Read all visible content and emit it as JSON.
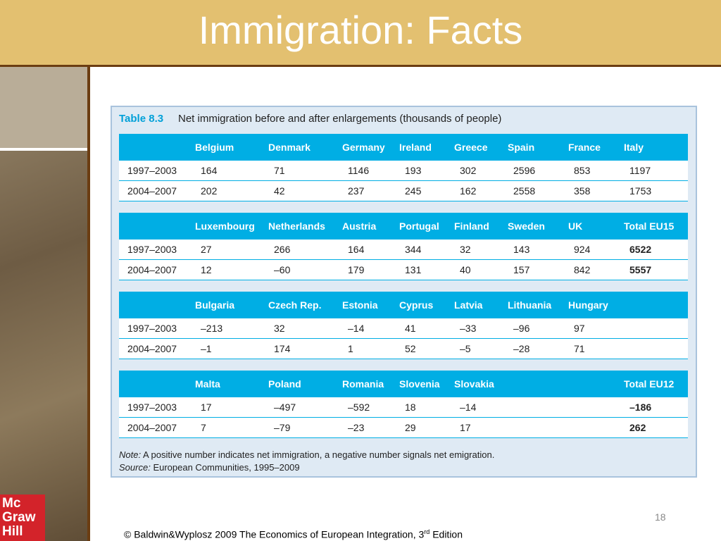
{
  "header": {
    "title": "Immigration: Facts"
  },
  "table": {
    "label": "Table 8.3",
    "caption": "Net immigration before and after enlargements (thousands of people)",
    "blocks": [
      {
        "columns": [
          "Belgium",
          "Denmark",
          "Germany",
          "Ireland",
          "Greece",
          "Spain",
          "France",
          "Italy"
        ],
        "rows": [
          {
            "period": "1997–2003",
            "cells": [
              "164",
              "71",
              "1146",
              "193",
              "302",
              "2596",
              "853",
              "1197"
            ]
          },
          {
            "period": "2004–2007",
            "cells": [
              "202",
              "42",
              "237",
              "245",
              "162",
              "2558",
              "358",
              "1753"
            ]
          }
        ]
      },
      {
        "columns": [
          "Luxembourg",
          "Netherlands",
          "Austria",
          "Portugal",
          "Finland",
          "Sweden",
          "UK",
          "Total EU15"
        ],
        "rows": [
          {
            "period": "1997–2003",
            "cells": [
              "27",
              "266",
              "164",
              "344",
              "32",
              "143",
              "924",
              "6522"
            ]
          },
          {
            "period": "2004–2007",
            "cells": [
              "12",
              "–60",
              "179",
              "131",
              "40",
              "157",
              "842",
              "5557"
            ]
          }
        ]
      },
      {
        "columns": [
          "Bulgaria",
          "Czech Rep.",
          "Estonia",
          "Cyprus",
          "Latvia",
          "Lithuania",
          "Hungary",
          null
        ],
        "rows": [
          {
            "period": "1997–2003",
            "cells": [
              "–213",
              "32",
              "–14",
              "41",
              "–33",
              "–96",
              "97",
              null
            ]
          },
          {
            "period": "2004–2007",
            "cells": [
              "–1",
              "174",
              "1",
              "52",
              "–5",
              "–28",
              "71",
              null
            ]
          }
        ]
      },
      {
        "columns": [
          "Malta",
          "Poland",
          "Romania",
          "Slovenia",
          "Slovakia",
          null,
          null,
          "Total EU12"
        ],
        "rows": [
          {
            "period": "1997–2003",
            "cells": [
              "17",
              "–497",
              "–592",
              "18",
              "–14",
              null,
              null,
              "–186"
            ]
          },
          {
            "period": "2004–2007",
            "cells": [
              "7",
              "–79",
              "–23",
              "29",
              "17",
              null,
              null,
              "262"
            ]
          }
        ]
      }
    ],
    "note_label": "Note:",
    "note": "A positive number indicates net immigration, a negative number signals net emigration.",
    "source_label": "Source:",
    "source": "European Communities, 1995–2009"
  },
  "page_number": "18",
  "footer": {
    "text": "© Baldwin&Wyplosz 2009 The Economics of European Integration, 3",
    "superscript": "rd",
    "suffix": " Edition"
  },
  "logo": {
    "lines": [
      "Mc",
      "Graw",
      "Hill"
    ]
  }
}
